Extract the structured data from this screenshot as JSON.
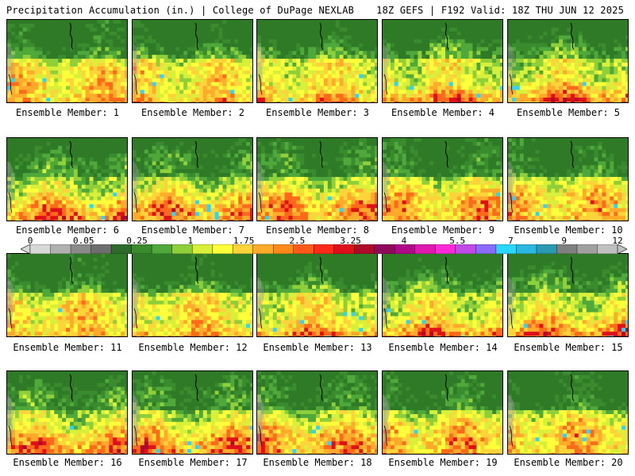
{
  "header": {
    "title": "Precipitation Accumulation (in.) | College of DuPage NEXLAB",
    "run_info": "18Z GEFS | F192 Valid: 18Z THU JUN 12 2025"
  },
  "caption_prefix": "Ensemble Member: ",
  "members": [
    1,
    2,
    3,
    4,
    5,
    6,
    7,
    8,
    9,
    10,
    11,
    12,
    13,
    14,
    15,
    16,
    17,
    18,
    19,
    20
  ],
  "legend": {
    "tick_labels": [
      "0",
      "0.05",
      "0.25",
      "1",
      "1.75",
      "2.5",
      "3.25",
      "4",
      "5.5",
      "7",
      "9",
      "12"
    ],
    "colors": [
      "#d8d8d8",
      "#b0b0b0",
      "#8a8a8a",
      "#6e6e6e",
      "#2e6b2a",
      "#3a8a2e",
      "#4ea83a",
      "#8ecf3a",
      "#d8f03a",
      "#ffff3a",
      "#ffd43a",
      "#ffaa2a",
      "#ff8a1a",
      "#ff5a1a",
      "#ff2a1a",
      "#e0101a",
      "#b00a2a",
      "#900a5a",
      "#b00a8a",
      "#e01ab0",
      "#ff2ad8",
      "#c04ae8",
      "#8a6aff",
      "#2ad8ff",
      "#2ab8e0",
      "#2a9ab0",
      "#808080",
      "#a0a0a0",
      "#c0c0c0"
    ]
  },
  "map_palette": [
    "#2e7a26",
    "#3a8a2e",
    "#4ea83a",
    "#8ecf3a",
    "#d8f03a",
    "#ffff3a",
    "#ffd43a",
    "#ffaa2a",
    "#ff6a1a",
    "#e0101a",
    "#b00a2a",
    "#c01aa0",
    "#e040e0",
    "#2ad8ff"
  ]
}
